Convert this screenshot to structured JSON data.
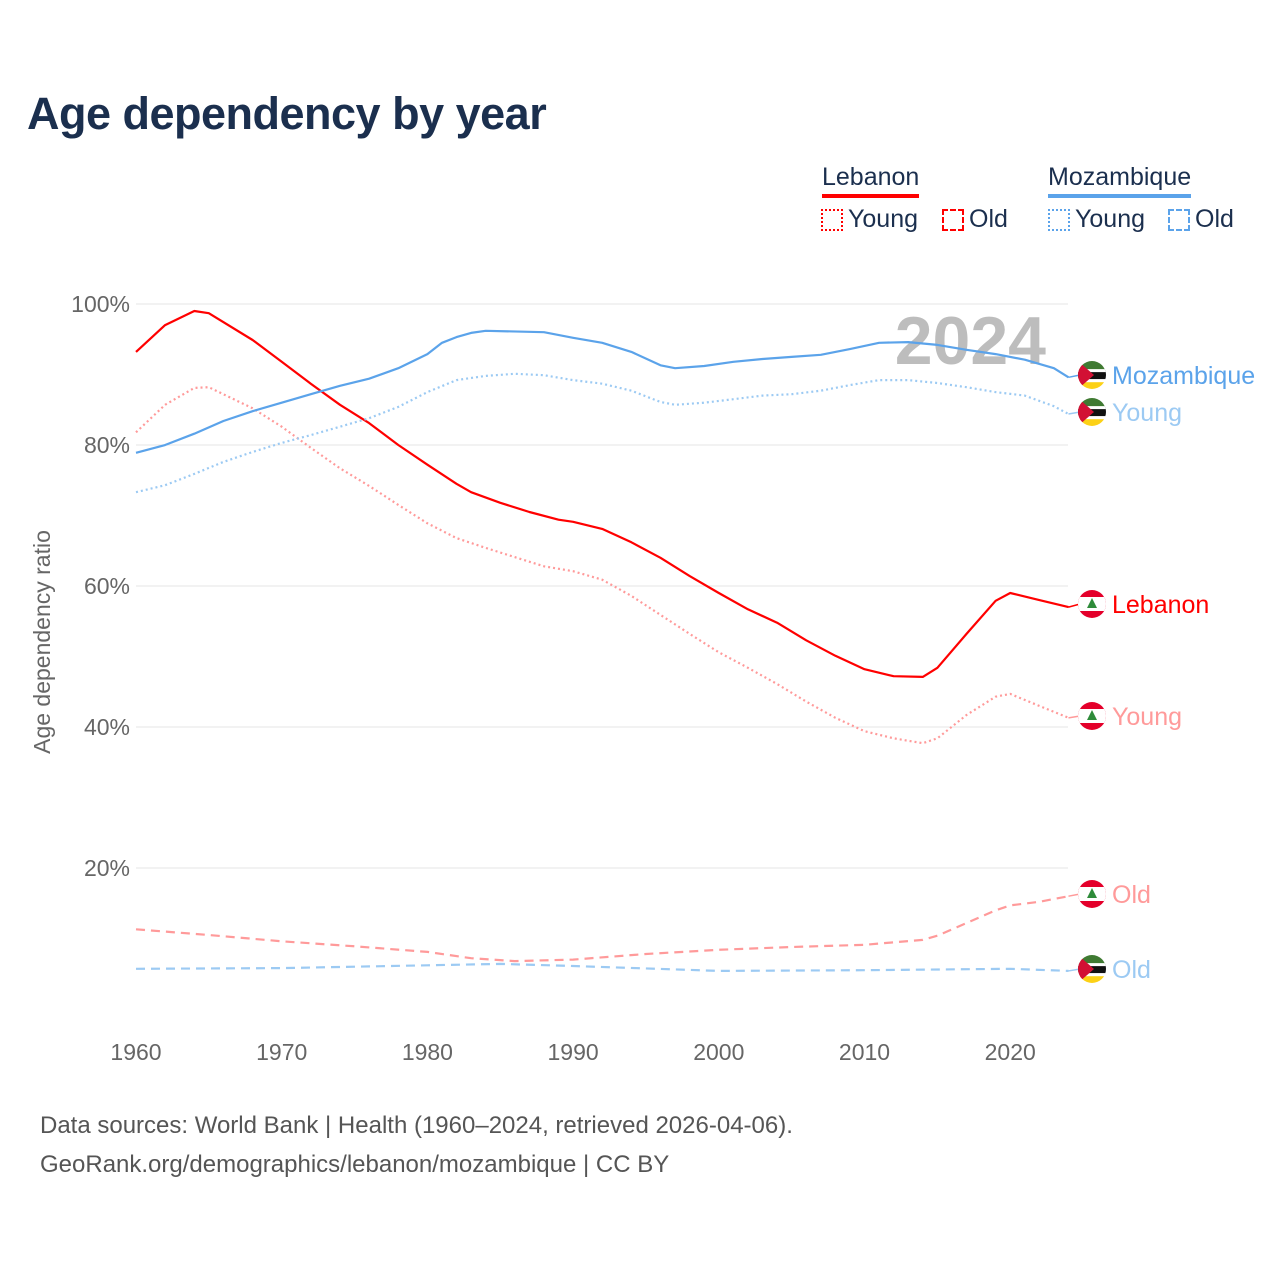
{
  "title": "Age dependency by year",
  "legend": {
    "groups": [
      {
        "country": "Lebanon",
        "color": "#ff0000",
        "items": [
          "Young",
          "Old"
        ]
      },
      {
        "country": "Mozambique",
        "color": "#5ba3ea",
        "items": [
          "Young",
          "Old"
        ]
      }
    ]
  },
  "footer": {
    "line1": "Data sources: World Bank | Health (1960–2024, retrieved 2026-04-06).",
    "line2": "GeoRank.org/demographics/lebanon/mozambique | CC BY"
  },
  "chart_data": {
    "type": "line",
    "title": "Age dependency by year",
    "ylabel": "Age dependency ratio",
    "xlabel": "",
    "year_watermark": "2024",
    "xlim": [
      1960,
      2024
    ],
    "ylim": [
      0,
      100
    ],
    "xticks": [
      1960,
      1970,
      1980,
      1990,
      2000,
      2010,
      2020
    ],
    "yticks": [
      20,
      40,
      60,
      80,
      100
    ],
    "ytick_labels": [
      "20%",
      "40%",
      "60%",
      "80%",
      "100%"
    ],
    "grid": true,
    "series": [
      {
        "name": "Lebanon",
        "label": "Lebanon",
        "country": "lebanon",
        "style": "solid",
        "color": "#ff0000",
        "points": [
          [
            1960,
            93.2
          ],
          [
            1962,
            97
          ],
          [
            1964,
            99
          ],
          [
            1965,
            98.7
          ],
          [
            1968,
            94.9
          ],
          [
            1970,
            91.8
          ],
          [
            1972,
            88.7
          ],
          [
            1974,
            85.7
          ],
          [
            1976,
            83.1
          ],
          [
            1978,
            80
          ],
          [
            1980,
            77.2
          ],
          [
            1982,
            74.5
          ],
          [
            1983,
            73.3
          ],
          [
            1985,
            71.8
          ],
          [
            1987,
            70.5
          ],
          [
            1989,
            69.4
          ],
          [
            1990,
            69.1
          ],
          [
            1992,
            68.1
          ],
          [
            1994,
            66.2
          ],
          [
            1996,
            64
          ],
          [
            1998,
            61.4
          ],
          [
            2000,
            59
          ],
          [
            2002,
            56.7
          ],
          [
            2004,
            54.8
          ],
          [
            2006,
            52.3
          ],
          [
            2008,
            50.1
          ],
          [
            2010,
            48.2
          ],
          [
            2012,
            47.2
          ],
          [
            2014,
            47.1
          ],
          [
            2015,
            48.4
          ],
          [
            2017,
            53.2
          ],
          [
            2019,
            57.9
          ],
          [
            2020,
            59
          ],
          [
            2022,
            58
          ],
          [
            2024,
            57
          ]
        ]
      },
      {
        "name": "Lebanon Young",
        "label": "Young",
        "country": "lebanon",
        "style": "dotted",
        "color": "#ff9a9a",
        "points": [
          [
            1960,
            81.8
          ],
          [
            1962,
            85.7
          ],
          [
            1964,
            88.1
          ],
          [
            1965,
            88.2
          ],
          [
            1968,
            85.2
          ],
          [
            1970,
            82.6
          ],
          [
            1972,
            79.6
          ],
          [
            1974,
            76.7
          ],
          [
            1976,
            74.2
          ],
          [
            1978,
            71.5
          ],
          [
            1980,
            68.9
          ],
          [
            1982,
            66.8
          ],
          [
            1984,
            65.4
          ],
          [
            1986,
            64.1
          ],
          [
            1988,
            62.8
          ],
          [
            1990,
            62.1
          ],
          [
            1992,
            60.9
          ],
          [
            1994,
            58.6
          ],
          [
            1996,
            55.9
          ],
          [
            1998,
            53.2
          ],
          [
            2000,
            50.6
          ],
          [
            2002,
            48.4
          ],
          [
            2004,
            46.1
          ],
          [
            2006,
            43.6
          ],
          [
            2008,
            41.3
          ],
          [
            2010,
            39.4
          ],
          [
            2012,
            38.4
          ],
          [
            2014,
            37.7
          ],
          [
            2015,
            38.4
          ],
          [
            2017,
            41.7
          ],
          [
            2019,
            44.3
          ],
          [
            2020,
            44.7
          ],
          [
            2022,
            43
          ],
          [
            2024,
            41.3
          ]
        ]
      },
      {
        "name": "Lebanon Old",
        "label": "Old",
        "country": "lebanon",
        "style": "dashed",
        "color": "#ff9a9a",
        "points": [
          [
            1960,
            11.3
          ],
          [
            1965,
            10.5
          ],
          [
            1970,
            9.6
          ],
          [
            1975,
            8.9
          ],
          [
            1980,
            8.1
          ],
          [
            1983,
            7.2
          ],
          [
            1986,
            6.8
          ],
          [
            1990,
            7.0
          ],
          [
            1995,
            7.8
          ],
          [
            2000,
            8.4
          ],
          [
            2005,
            8.8
          ],
          [
            2010,
            9.1
          ],
          [
            2014,
            9.8
          ],
          [
            2015,
            10.4
          ],
          [
            2017,
            12.2
          ],
          [
            2019,
            14
          ],
          [
            2020,
            14.7
          ],
          [
            2022,
            15.2
          ],
          [
            2024,
            16
          ]
        ]
      },
      {
        "name": "Mozambique",
        "label": "Mozambique",
        "country": "mozambique",
        "style": "solid",
        "color": "#5ba3ea",
        "points": [
          [
            1960,
            78.9
          ],
          [
            1962,
            80
          ],
          [
            1964,
            81.6
          ],
          [
            1966,
            83.4
          ],
          [
            1968,
            84.8
          ],
          [
            1970,
            86
          ],
          [
            1972,
            87.2
          ],
          [
            1974,
            88.4
          ],
          [
            1976,
            89.4
          ],
          [
            1978,
            90.9
          ],
          [
            1980,
            92.9
          ],
          [
            1981,
            94.5
          ],
          [
            1982,
            95.3
          ],
          [
            1983,
            95.9
          ],
          [
            1984,
            96.2
          ],
          [
            1988,
            96
          ],
          [
            1990,
            95.2
          ],
          [
            1992,
            94.5
          ],
          [
            1994,
            93.2
          ],
          [
            1996,
            91.3
          ],
          [
            1997,
            90.9
          ],
          [
            1999,
            91.2
          ],
          [
            2001,
            91.8
          ],
          [
            2003,
            92.2
          ],
          [
            2005,
            92.5
          ],
          [
            2007,
            92.8
          ],
          [
            2009,
            93.6
          ],
          [
            2011,
            94.5
          ],
          [
            2013,
            94.6
          ],
          [
            2015,
            94.2
          ],
          [
            2017,
            93.5
          ],
          [
            2019,
            92.9
          ],
          [
            2021,
            92.1
          ],
          [
            2023,
            90.9
          ],
          [
            2024,
            89.6
          ]
        ]
      },
      {
        "name": "Mozambique Young",
        "label": "Young",
        "country": "mozambique",
        "style": "dotted",
        "color": "#9ccaf3",
        "points": [
          [
            1960,
            73.3
          ],
          [
            1962,
            74.3
          ],
          [
            1964,
            75.9
          ],
          [
            1966,
            77.6
          ],
          [
            1968,
            79
          ],
          [
            1970,
            80.3
          ],
          [
            1972,
            81.4
          ],
          [
            1974,
            82.6
          ],
          [
            1976,
            83.8
          ],
          [
            1978,
            85.4
          ],
          [
            1980,
            87.5
          ],
          [
            1982,
            89.2
          ],
          [
            1984,
            89.8
          ],
          [
            1986,
            90.1
          ],
          [
            1988,
            89.9
          ],
          [
            1990,
            89.2
          ],
          [
            1992,
            88.7
          ],
          [
            1994,
            87.7
          ],
          [
            1996,
            86.1
          ],
          [
            1997,
            85.7
          ],
          [
            1999,
            86
          ],
          [
            2001,
            86.5
          ],
          [
            2003,
            87
          ],
          [
            2005,
            87.2
          ],
          [
            2007,
            87.7
          ],
          [
            2009,
            88.5
          ],
          [
            2011,
            89.2
          ],
          [
            2013,
            89.2
          ],
          [
            2015,
            88.8
          ],
          [
            2017,
            88.2
          ],
          [
            2019,
            87.5
          ],
          [
            2021,
            87
          ],
          [
            2023,
            85.5
          ],
          [
            2024,
            84.4
          ]
        ]
      },
      {
        "name": "Mozambique Old",
        "label": "Old",
        "country": "mozambique",
        "style": "dashed",
        "color": "#9ccaf3",
        "points": [
          [
            1960,
            5.7
          ],
          [
            1970,
            5.8
          ],
          [
            1980,
            6.2
          ],
          [
            1985,
            6.4
          ],
          [
            1990,
            6.1
          ],
          [
            2000,
            5.4
          ],
          [
            2010,
            5.5
          ],
          [
            2020,
            5.7
          ],
          [
            2024,
            5.4
          ]
        ]
      }
    ]
  }
}
